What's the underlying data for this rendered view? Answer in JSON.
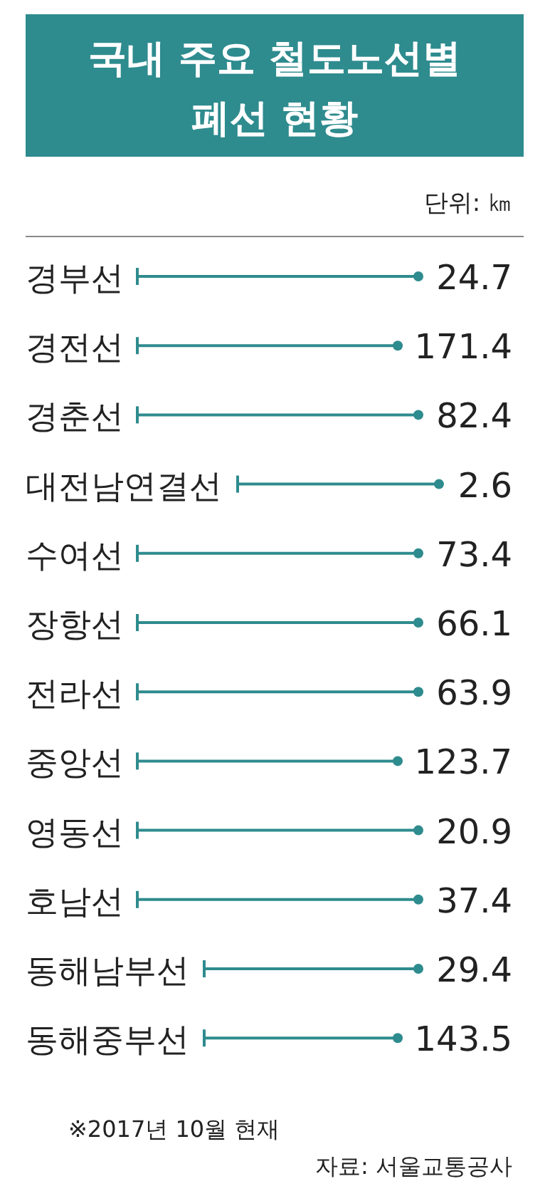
{
  "chart_data": {
    "type": "other",
    "title": "국내 주요 철도노선별 폐선 현황",
    "subtitle": "단위: ㎞",
    "categories": [
      "경부선",
      "경전선",
      "경춘선",
      "대전남연결선",
      "수여선",
      "장항선",
      "전라선",
      "중앙선",
      "영동선",
      "호남선",
      "동해남부선",
      "동해중부선"
    ],
    "values": [
      24.7,
      171.4,
      82.4,
      2.6,
      73.4,
      66.1,
      63.9,
      123.7,
      20.9,
      37.4,
      29.4,
      143.5
    ],
    "color": "#2e8b8e",
    "data_labels": true,
    "annotations": [
      "※2017년 10월 현재",
      "자료: 서울교통공사"
    ]
  }
}
